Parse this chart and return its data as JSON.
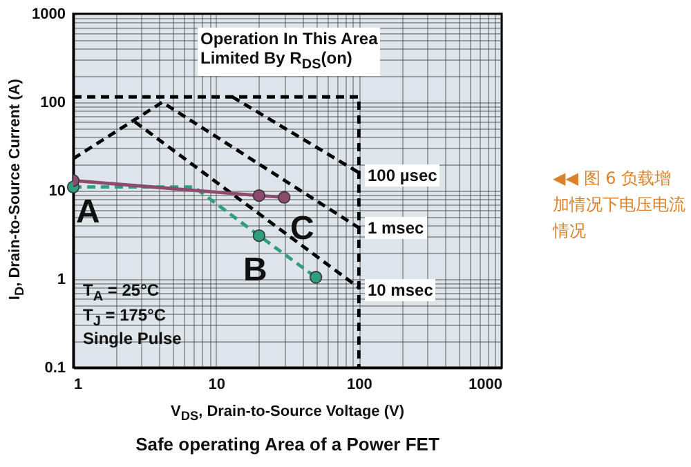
{
  "chart_data": {
    "type": "line",
    "title": "Safe operating Area of a Power FET",
    "subtitle": "◀◀ 图 6  负载增加情况下电压电流情况",
    "xlabel": "V$_{DS}$, Drain-to-Source Voltage (V)",
    "ylabel": "I$_{D}$, Drain-to-Source Current (A)",
    "log": "xy",
    "xlim": [
      1,
      1000
    ],
    "ylim": [
      0.1,
      1000
    ],
    "xticks": [
      1,
      10,
      100,
      1000
    ],
    "yticks": [
      0.1,
      1,
      10,
      100,
      1000
    ],
    "grid": true,
    "series": [
      {
        "color": "#000000",
        "line_style": "dashed",
        "marker": "none",
        "x": [
          1,
          100,
          100
        ],
        "values": [
          115,
          115,
          0.1
        ]
      },
      {
        "color": "#000000",
        "line_style": "dashed",
        "marker": "none",
        "x": [
          1,
          4.2,
          100
        ],
        "values": [
          23,
          100,
          3.8
        ]
      },
      {
        "color": "#000000",
        "line_style": "dashed",
        "marker": "none",
        "x": [
          13,
          100
        ],
        "values": [
          115,
          16
        ]
      },
      {
        "color": "#000000",
        "line_style": "dashed",
        "marker": "none",
        "x": [
          2.7,
          100
        ],
        "values": [
          60,
          0.8
        ]
      },
      {
        "color": "#2f9e7e",
        "line_style": "dashed",
        "marker": "none",
        "x": [
          1,
          7,
          20,
          50
        ],
        "values": [
          11,
          11,
          3.1,
          1.05
        ]
      },
      {
        "type": "scatter",
        "color": "#2f9e7e",
        "marker": "circle",
        "x": [
          1,
          20,
          50
        ],
        "values": [
          11,
          3.1,
          1.05
        ]
      },
      {
        "color": "#8b4a6e",
        "line_style": "solid",
        "marker": "circle",
        "x": [
          1,
          20,
          30
        ],
        "values": [
          13,
          8.8,
          8.4
        ]
      }
    ],
    "annotations": [
      "Operation In This Area\nLimited By R$_{DS}$(on)",
      "100 µsec",
      "1 msec",
      "10 msec",
      "A",
      "B",
      "C",
      "T$_{A}$ = 25°C",
      "T$_{J}$ = 175°C",
      "Single Pulse"
    ]
  }
}
